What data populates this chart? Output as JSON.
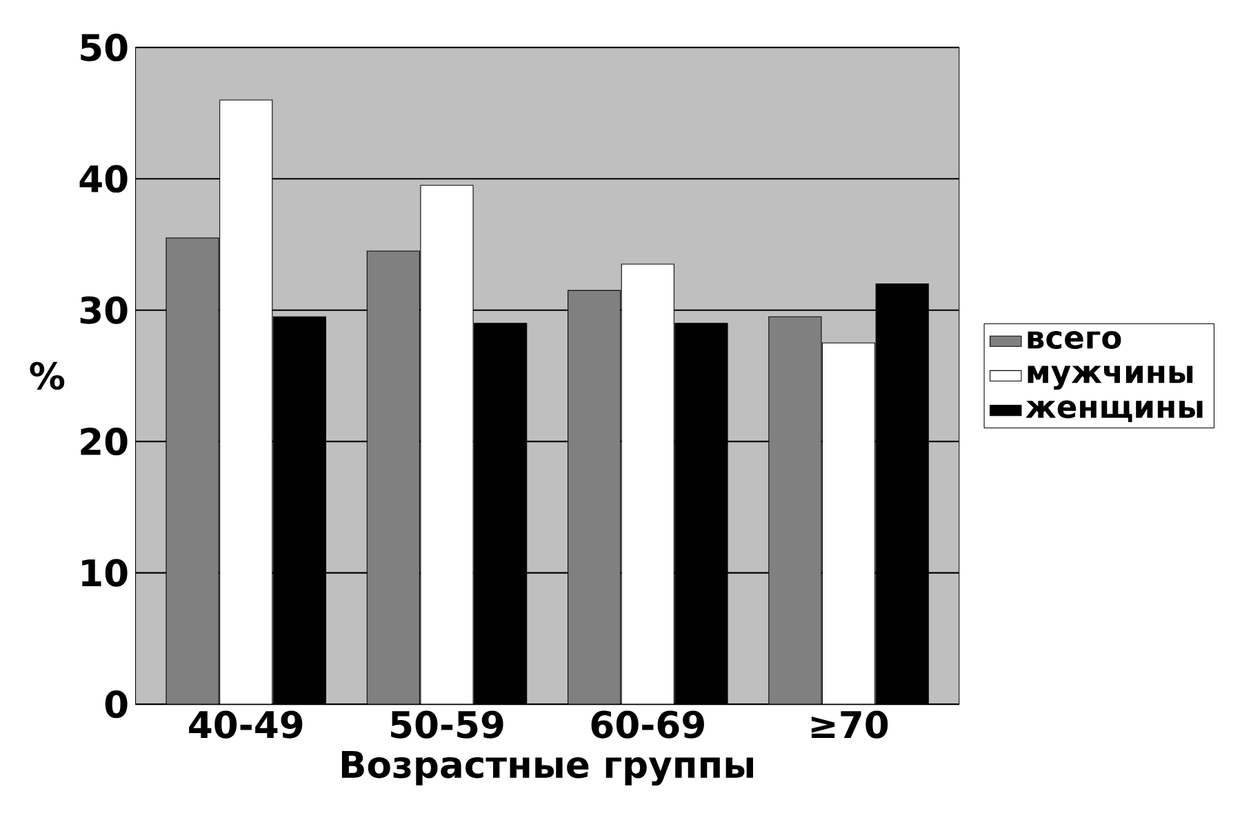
{
  "chart_data": {
    "type": "bar",
    "xlabel": "Возрастные группы",
    "ylabel": "%",
    "categories": [
      "40-49",
      "50-59",
      "60-69",
      "≥70"
    ],
    "series": [
      {
        "name": "всего",
        "color": "#808080",
        "values": [
          35.5,
          34.5,
          31.5,
          29.5
        ]
      },
      {
        "name": "мужчины",
        "color": "#ffffff",
        "values": [
          46,
          39.5,
          33.5,
          27.5
        ]
      },
      {
        "name": "женщины",
        "color": "#000000",
        "values": [
          29.5,
          29,
          29,
          32
        ]
      }
    ],
    "ylim": [
      0,
      50
    ],
    "yticks": [
      0,
      10,
      20,
      30,
      40,
      50
    ],
    "grid": "y",
    "legend": "right"
  }
}
